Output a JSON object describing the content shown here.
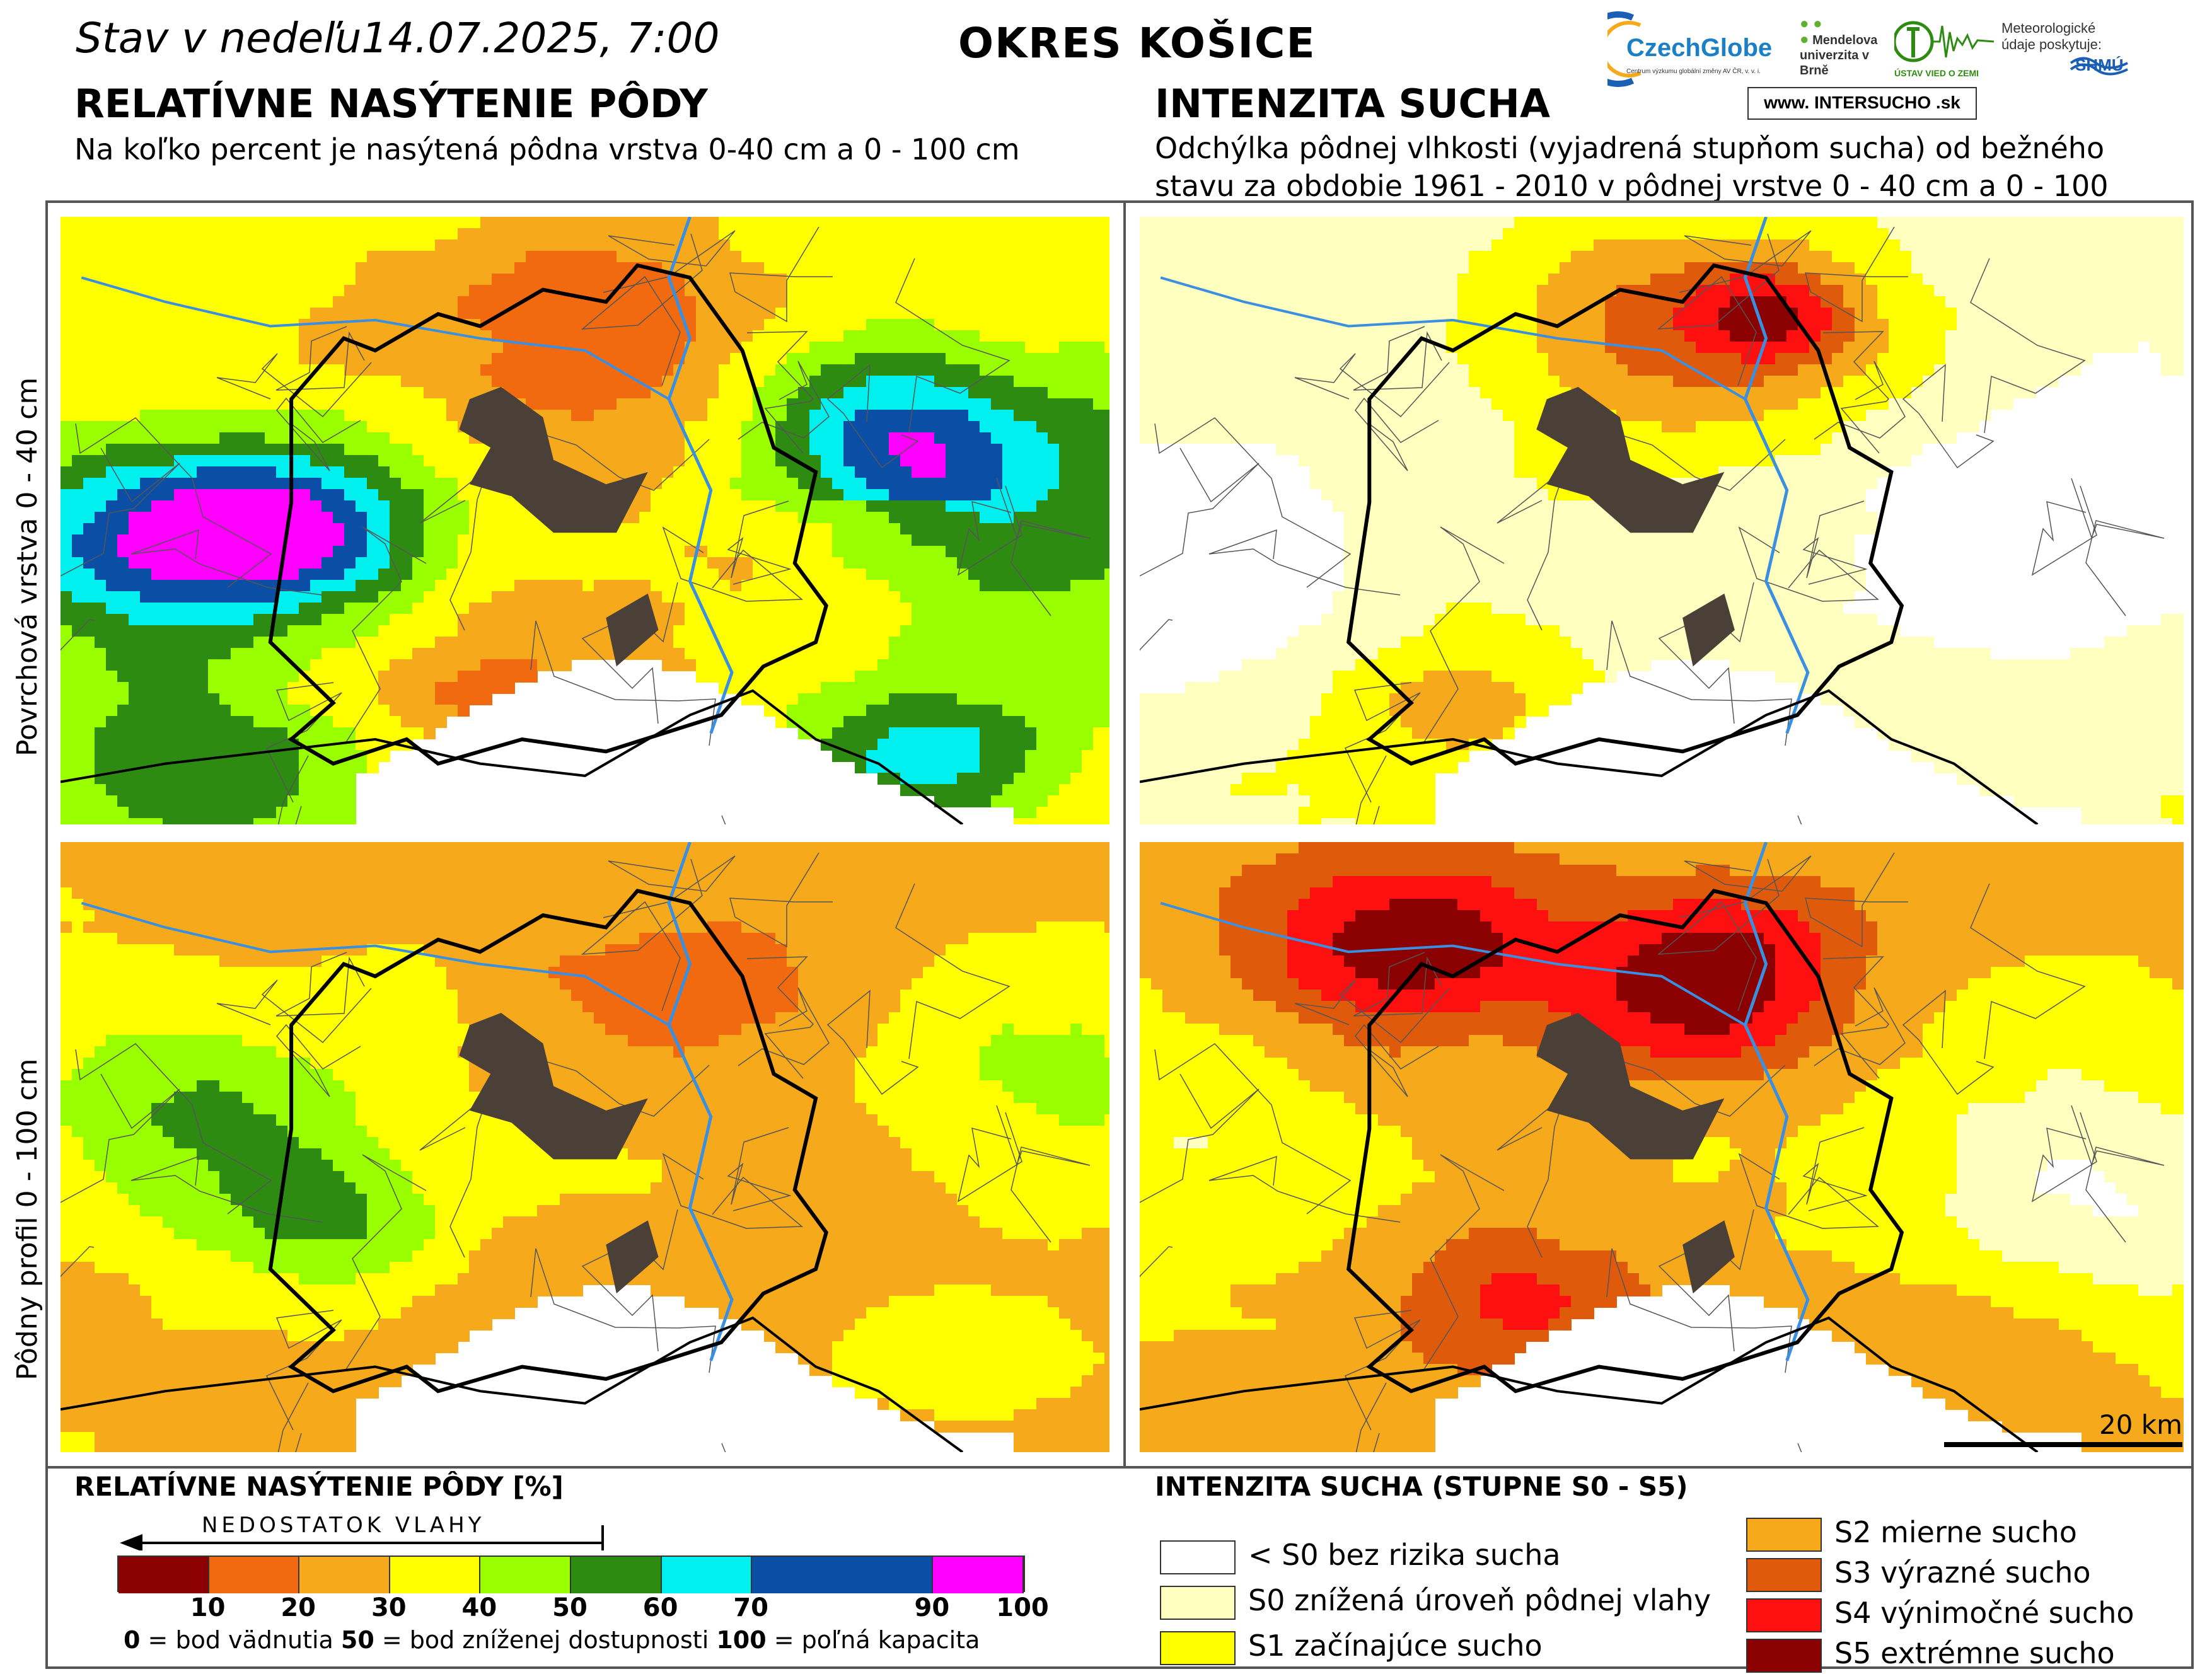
{
  "header": {
    "date_prefix": "Stav v nedeľu",
    "date_value": "14.07.2025, 7:00",
    "district": "OKRES KOŠICE"
  },
  "left": {
    "title": "RELATÍVNE NASÝTENIE PÔDY",
    "subtitle": "Na koľko percent je nasýtená pôdna vrstva 0-40 cm a 0 - 100 cm"
  },
  "right": {
    "title": "INTENZITA SUCHA",
    "subtitle": "Odchýlka pôdnej vlhkosti (vyjadrená stupňom sucha) od bežného stavu za obdobie 1961 - 2010 v pôdnej vrstve 0 - 40 cm a 0 - 100 cm"
  },
  "rows": {
    "top_label": "Povrchová vrstva 0 - 40 cm",
    "bottom_label": "Pôdny profil 0 - 100 cm"
  },
  "logos": {
    "czechglobe": "CzechGlobe",
    "czechglobe_sub": "Centrum výzkumu globální změny AV ČR, v. v. i.",
    "mendel": "Mendelova univerzita v Brně",
    "uvoz": "ÚSTAV VIED O ZEMI",
    "shmu_intro": "Meteorologické údaje poskytuje:",
    "shmu": "SHMÚ",
    "intersucho": "www. INTERSUCHO .sk"
  },
  "scale": {
    "label": "20 km"
  },
  "legend_left": {
    "title": "RELATÍVNE NASÝTENIE PÔDY [%]",
    "arrow_label": "NEDOSTATOK VLAHY",
    "bins": [
      {
        "to": 10,
        "color": "#8b0000"
      },
      {
        "to": 20,
        "color": "#f26a10"
      },
      {
        "to": 30,
        "color": "#f6a91b"
      },
      {
        "to": 40,
        "color": "#ffff00"
      },
      {
        "to": 50,
        "color": "#99ff00"
      },
      {
        "to": 60,
        "color": "#2e8b12"
      },
      {
        "to": 70,
        "color": "#00f0f0"
      },
      {
        "to": 90,
        "color": "#0a4fa5"
      },
      {
        "to": 100,
        "color": "#ff00ff"
      }
    ],
    "ticks": [
      "10",
      "20",
      "30",
      "40",
      "50",
      "60",
      "70",
      "90",
      "100"
    ],
    "footnote": [
      {
        "num": "0",
        "text": " = bod vädnutia"
      },
      {
        "num": "50",
        "text": " = bod zníženej dostupnosti"
      },
      {
        "num": "100",
        "text": " = poľná kapacita"
      }
    ]
  },
  "legend_right": {
    "title": "INTENZITA SUCHA (STUPNE S0 - S5)",
    "items": [
      {
        "label": "< S0 bez rizika sucha",
        "color": "#ffffff"
      },
      {
        "label": "S0 znížená úroveň pôdnej vlahy",
        "color": "#ffffc0"
      },
      {
        "label": "S1 začínajúce sucho",
        "color": "#ffff00"
      },
      {
        "label": "S2 mierne sucho",
        "color": "#f6a91b"
      },
      {
        "label": "S3 výrazné sucho",
        "color": "#e05a0c"
      },
      {
        "label": "S4 výnimočné sucho",
        "color": "#ff1010"
      },
      {
        "label": "S5 extrémne sucho",
        "color": "#8b0000"
      }
    ]
  }
}
